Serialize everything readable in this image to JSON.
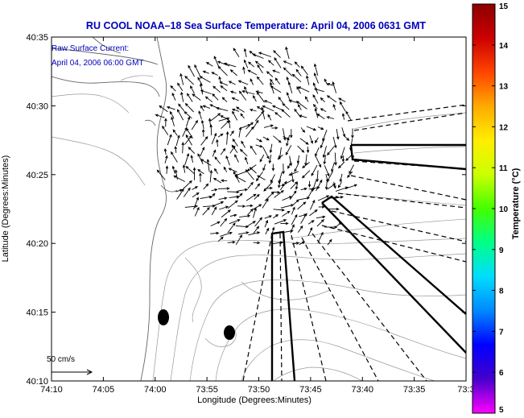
{
  "title": "RU COOL  NOAA–18  Sea Surface Temperature:  April 04, 2006 0631 GMT",
  "annotation": {
    "line1": "Raw Surface Current:",
    "line2": "April 04, 2006 06:00 GMT"
  },
  "scale": {
    "label": "50 cm/s"
  },
  "axes": {
    "xlabel": "Longitude (Degrees:Minutes)",
    "ylabel": "Latitude (Degrees:Minutes)",
    "xticks": [
      "74:10",
      "74:05",
      "74:00",
      "73:55",
      "73:50",
      "73:45",
      "73:40",
      "73:35",
      "73:3"
    ],
    "yticks": [
      "40:35",
      "40:30",
      "40:25",
      "40:20",
      "40:15",
      "40:10"
    ]
  },
  "colorbar": {
    "label": "Temperature (°C)",
    "ticks": [
      "15",
      "14",
      "13",
      "12",
      "11",
      "10",
      "9",
      "8",
      "7",
      "6",
      "5"
    ],
    "min": 5,
    "max": 15,
    "colors": [
      "#ff00ff",
      "#4400cc",
      "#0000ff",
      "#0088ff",
      "#00ddff",
      "#00ff88",
      "#44ff00",
      "#ccff00",
      "#ffee00",
      "#ffaa00",
      "#ff4400",
      "#cc0000",
      "#8b0000"
    ]
  },
  "colors": {
    "title": "#0000bb",
    "annotation": "#0000bb",
    "frame": "#000000",
    "contour": "#888888"
  }
}
